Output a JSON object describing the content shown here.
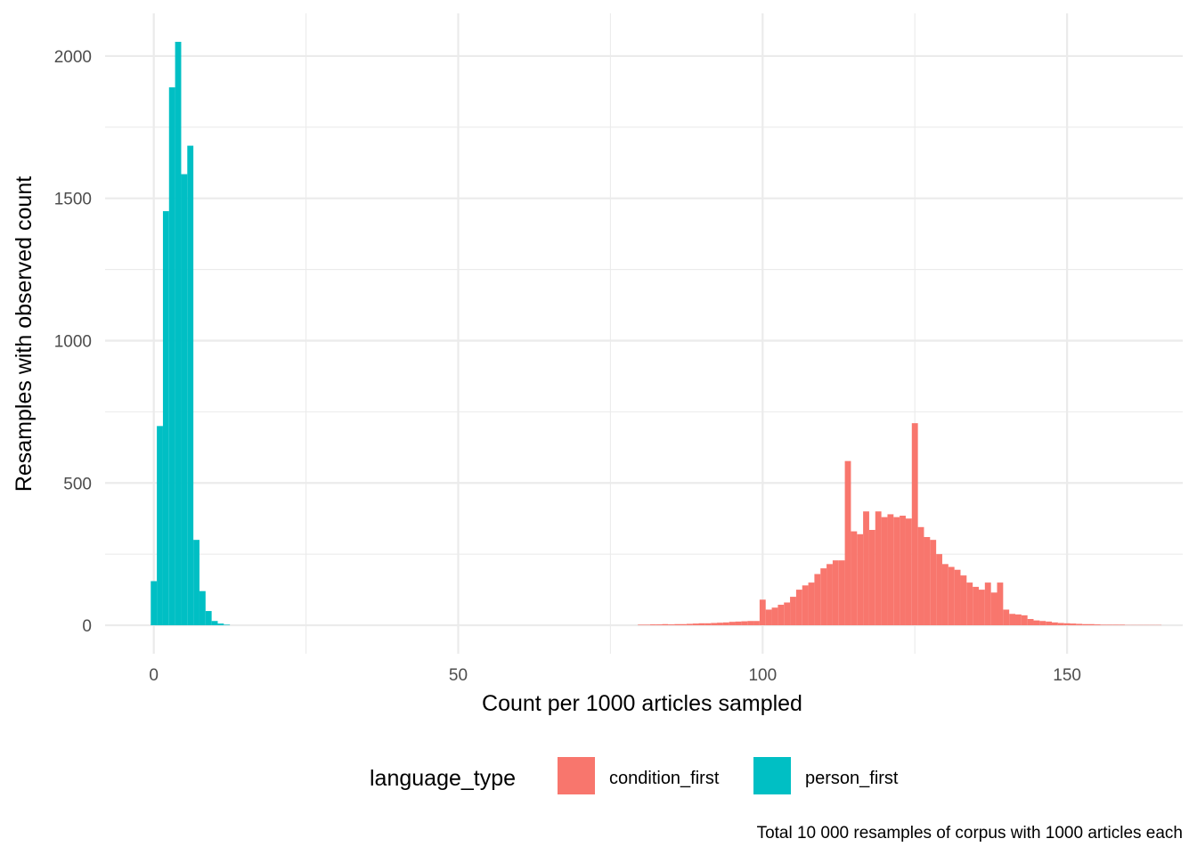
{
  "chart_data": {
    "type": "bar",
    "title": "",
    "xlabel": "Count per 1000 articles sampled",
    "ylabel": "Resamples with observed count",
    "caption": "Total 10 000 resamples of corpus with 1000 articles each",
    "xlim": [
      -8,
      169
    ],
    "ylim": [
      -100,
      2150
    ],
    "x_ticks": [
      0,
      50,
      100,
      150
    ],
    "y_ticks": [
      0,
      500,
      1000,
      1500,
      2000
    ],
    "bin_width": 1,
    "grid": true,
    "legend": {
      "title": "language_type",
      "position": "bottom"
    },
    "series": [
      {
        "name": "condition_first",
        "color": "#F8766D",
        "x": [
          80,
          81,
          82,
          83,
          84,
          85,
          86,
          87,
          88,
          89,
          90,
          91,
          92,
          93,
          94,
          95,
          96,
          97,
          98,
          99,
          100,
          101,
          102,
          103,
          104,
          105,
          106,
          107,
          108,
          109,
          110,
          111,
          112,
          113,
          114,
          115,
          116,
          117,
          118,
          119,
          120,
          121,
          122,
          123,
          124,
          125,
          126,
          127,
          128,
          129,
          130,
          131,
          132,
          133,
          134,
          135,
          136,
          137,
          138,
          139,
          140,
          141,
          142,
          143,
          144,
          145,
          146,
          147,
          148,
          149,
          150,
          151,
          152,
          153,
          154,
          155,
          156,
          157,
          158,
          159,
          160,
          161,
          162,
          163,
          164,
          165
        ],
        "values": [
          2,
          2,
          3,
          3,
          4,
          3,
          4,
          4,
          5,
          6,
          7,
          7,
          8,
          9,
          10,
          12,
          13,
          14,
          15,
          15,
          90,
          55,
          62,
          72,
          80,
          100,
          125,
          140,
          150,
          180,
          200,
          215,
          228,
          228,
          577,
          330,
          320,
          400,
          335,
          400,
          380,
          390,
          380,
          385,
          375,
          710,
          345,
          310,
          300,
          250,
          215,
          205,
          195,
          175,
          150,
          135,
          125,
          150,
          115,
          150,
          55,
          40,
          38,
          35,
          22,
          17,
          15,
          13,
          10,
          8,
          7,
          6,
          5,
          4,
          4,
          3,
          2,
          2,
          2,
          2,
          1,
          1,
          1,
          1,
          1,
          1
        ]
      },
      {
        "name": "person_first",
        "color": "#00BFC4",
        "x": [
          0,
          1,
          2,
          3,
          4,
          5,
          6,
          7,
          8,
          9,
          10,
          11,
          12
        ],
        "values": [
          155,
          700,
          1455,
          1890,
          2050,
          1585,
          1685,
          300,
          120,
          50,
          15,
          6,
          2
        ]
      }
    ]
  }
}
